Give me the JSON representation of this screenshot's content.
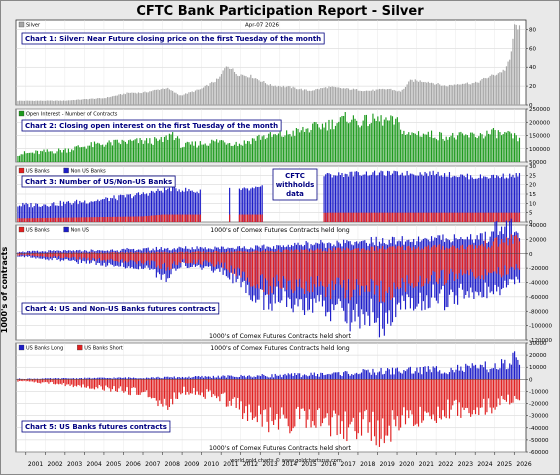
{
  "title": "CFTC Bank Participation Report - Silver",
  "y_side_label": "1000's of contracts",
  "credit": "world gold charts © www.goldchartsrus.com",
  "colors": {
    "navy": "#000080",
    "grey": "#a6a6a6",
    "green": "#1e9a1e",
    "red": "#e02020",
    "blue": "#1c1cc8",
    "frame_bg": "#ffffff",
    "page_bg": "#e9e9e9"
  },
  "x_axis": {
    "years": [
      "2001",
      "2002",
      "2003",
      "2004",
      "2005",
      "2006",
      "2007",
      "2008",
      "2009",
      "2010",
      "2011",
      "2012",
      "2013",
      "2014",
      "2015",
      "2016",
      "2017",
      "2018",
      "2019",
      "2020",
      "2021",
      "2022",
      "2023",
      "2024",
      "2025",
      "2026"
    ],
    "range": [
      2000.5,
      2026.6
    ]
  },
  "chart_data": [
    {
      "id": "chart1",
      "type": "bar",
      "title": "Chart 1: Silver: Near Future closing price on the first Tuesday of the month",
      "legend": [
        "Silver"
      ],
      "date_label": "Apr-07 2026",
      "ylim": [
        0,
        90
      ],
      "ticks": [
        "0",
        "20",
        "40",
        "60",
        "80"
      ],
      "anchors": [
        [
          2001.0,
          4.5
        ],
        [
          2003.0,
          4.6
        ],
        [
          2004.3,
          6.5
        ],
        [
          2005.0,
          7.2
        ],
        [
          2006.3,
          13
        ],
        [
          2007.0,
          13
        ],
        [
          2008.2,
          18
        ],
        [
          2008.9,
          10
        ],
        [
          2010.0,
          17
        ],
        [
          2010.9,
          28
        ],
        [
          2011.3,
          43
        ],
        [
          2011.8,
          33
        ],
        [
          2012.6,
          30
        ],
        [
          2013.5,
          21
        ],
        [
          2014.5,
          19
        ],
        [
          2015.5,
          15
        ],
        [
          2016.5,
          19
        ],
        [
          2017.5,
          17
        ],
        [
          2018.5,
          15
        ],
        [
          2019.6,
          17
        ],
        [
          2020.2,
          14
        ],
        [
          2020.7,
          26
        ],
        [
          2021.5,
          25
        ],
        [
          2022.5,
          20
        ],
        [
          2023.3,
          23
        ],
        [
          2024.0,
          23
        ],
        [
          2024.6,
          29
        ],
        [
          2025.0,
          32
        ],
        [
          2025.5,
          37
        ],
        [
          2025.8,
          48
        ],
        [
          2026.0,
          82
        ],
        [
          2026.2,
          84
        ],
        [
          2026.3,
          78
        ]
      ]
    },
    {
      "id": "chart2",
      "type": "bar",
      "title": "Chart 2: Closing open interest on the first Tuesday of the month",
      "legend": [
        "Open Interest - Number of Contracts"
      ],
      "ylim": [
        50000,
        250000
      ],
      "ticks": [
        "50000",
        "100000",
        "150000",
        "200000",
        "250000"
      ],
      "anchors": [
        [
          2001.0,
          82000
        ],
        [
          2002.0,
          88000
        ],
        [
          2003.0,
          95000
        ],
        [
          2004.0,
          110000
        ],
        [
          2005.0,
          118000
        ],
        [
          2006.0,
          125000
        ],
        [
          2007.0,
          128000
        ],
        [
          2008.0,
          130000
        ],
        [
          2008.5,
          160000
        ],
        [
          2009.0,
          110000
        ],
        [
          2010.0,
          120000
        ],
        [
          2011.0,
          130000
        ],
        [
          2012.0,
          118000
        ],
        [
          2013.0,
          145000
        ],
        [
          2014.0,
          150000
        ],
        [
          2015.0,
          165000
        ],
        [
          2016.0,
          185000
        ],
        [
          2017.0,
          200000
        ],
        [
          2017.5,
          220000
        ],
        [
          2018.0,
          200000
        ],
        [
          2019.0,
          210000
        ],
        [
          2020.0,
          200000
        ],
        [
          2020.5,
          150000
        ],
        [
          2021.0,
          160000
        ],
        [
          2022.0,
          150000
        ],
        [
          2023.0,
          145000
        ],
        [
          2024.0,
          150000
        ],
        [
          2025.0,
          160000
        ],
        [
          2026.0,
          145000
        ],
        [
          2026.3,
          125000
        ]
      ]
    },
    {
      "id": "chart3",
      "type": "bar",
      "title": "Chart 3: Number of US/Non-US Banks",
      "legend": [
        "US Banks",
        "Non US Banks"
      ],
      "annotation": [
        "CFTC",
        "withholds",
        "data"
      ],
      "ylim": [
        0,
        30
      ],
      "ticks": [
        "0",
        "5",
        "10",
        "15",
        "20",
        "25",
        "30"
      ],
      "gaps": [
        [
          2010.0,
          2011.9
        ],
        [
          2013.1,
          2016.2
        ]
      ],
      "singles": [
        2011.4
      ],
      "us_banks": [
        [
          2001.0,
          2
        ],
        [
          2007.0,
          3
        ],
        [
          2008.0,
          4
        ],
        [
          2010.0,
          4
        ],
        [
          2012.0,
          4
        ],
        [
          2013.0,
          4
        ],
        [
          2016.5,
          5
        ],
        [
          2020.0,
          5
        ],
        [
          2026.3,
          5
        ]
      ],
      "total_banks": [
        [
          2001.0,
          9
        ],
        [
          2003.0,
          10
        ],
        [
          2005.0,
          12
        ],
        [
          2007.0,
          15
        ],
        [
          2008.5,
          18
        ],
        [
          2010.0,
          16
        ],
        [
          2011.4,
          18
        ],
        [
          2012.0,
          17
        ],
        [
          2013.0,
          18
        ],
        [
          2016.3,
          25
        ],
        [
          2018.0,
          26
        ],
        [
          2020.0,
          26
        ],
        [
          2022.0,
          26
        ],
        [
          2024.0,
          24
        ],
        [
          2026.3,
          25
        ]
      ]
    },
    {
      "id": "chart4",
      "type": "bar",
      "title": "Chart 4: US and Non-US Banks futures contracts",
      "legend": [
        "US Banks",
        "Non US"
      ],
      "top_note": "1000's of Comex Futures Contracts held long",
      "bottom_note": "1000's of Comex Futures Contracts held short",
      "ylim": [
        -120000,
        40000
      ],
      "ticks": [
        "40000",
        "20000",
        "0",
        "-20000",
        "-40000",
        "-60000",
        "-80000",
        "-100000",
        "-120000"
      ],
      "us_long": [
        [
          2001,
          1000
        ],
        [
          2008,
          2000
        ],
        [
          2012,
          3000
        ],
        [
          2016,
          5000
        ],
        [
          2020,
          8000
        ],
        [
          2024,
          10000
        ],
        [
          2026,
          20000
        ]
      ],
      "nonus_long": [
        [
          2001,
          2000
        ],
        [
          2005,
          3000
        ],
        [
          2008,
          5000
        ],
        [
          2011,
          6000
        ],
        [
          2013,
          5000
        ],
        [
          2016,
          9000
        ],
        [
          2020,
          9000
        ],
        [
          2024,
          12000
        ],
        [
          2025.8,
          18000
        ],
        [
          2026,
          5000
        ]
      ],
      "us_short": [
        [
          2001,
          -2000
        ],
        [
          2005,
          -8000
        ],
        [
          2007,
          -12000
        ],
        [
          2008.3,
          -18000
        ],
        [
          2009,
          -10000
        ],
        [
          2011,
          -15000
        ],
        [
          2012.5,
          -38000
        ],
        [
          2013,
          -42000
        ],
        [
          2016,
          -45000
        ],
        [
          2017.5,
          -52000
        ],
        [
          2018.5,
          -50000
        ],
        [
          2019.5,
          -55000
        ],
        [
          2020.2,
          -40000
        ],
        [
          2021,
          -38000
        ],
        [
          2023,
          -30000
        ],
        [
          2025,
          -28000
        ],
        [
          2026,
          -20000
        ]
      ],
      "nonus_short": [
        [
          2001,
          -2000
        ],
        [
          2005,
          -6000
        ],
        [
          2008.3,
          -12000
        ],
        [
          2009,
          -5000
        ],
        [
          2011,
          -8000
        ],
        [
          2012.5,
          -15000
        ],
        [
          2013,
          -20000
        ],
        [
          2016,
          -25000
        ],
        [
          2017.5,
          -38000
        ],
        [
          2018.5,
          -40000
        ],
        [
          2019.5,
          -38000
        ],
        [
          2020.2,
          -25000
        ],
        [
          2021,
          -28000
        ],
        [
          2023,
          -28000
        ],
        [
          2025,
          -25000
        ],
        [
          2026,
          -15000
        ]
      ]
    },
    {
      "id": "chart5",
      "type": "bar",
      "title": "Chart 5: US Banks futures contracts",
      "legend": [
        "US Banks Long",
        "US Banks Short"
      ],
      "top_note": "1000's of Comex Futures Contracts held long",
      "bottom_note": "1000's of Comex Futures Contracts held short",
      "ylim": [
        -60000,
        30000
      ],
      "ticks": [
        "30000",
        "20000",
        "10000",
        "0",
        "-10000",
        "-20000",
        "-30000",
        "-40000",
        "-50000",
        "-60000"
      ],
      "long": [
        [
          2001,
          500
        ],
        [
          2008,
          1500
        ],
        [
          2012,
          2500
        ],
        [
          2016,
          4000
        ],
        [
          2020,
          7000
        ],
        [
          2024,
          9000
        ],
        [
          2025.8,
          12000
        ],
        [
          2026,
          18000
        ],
        [
          2026.3,
          8000
        ]
      ],
      "short": [
        [
          2001,
          -1500
        ],
        [
          2005,
          -7000
        ],
        [
          2007,
          -11000
        ],
        [
          2008.3,
          -22000
        ],
        [
          2009,
          -9000
        ],
        [
          2011,
          -14000
        ],
        [
          2012.5,
          -30000
        ],
        [
          2013,
          -33000
        ],
        [
          2016,
          -34000
        ],
        [
          2017.5,
          -40000
        ],
        [
          2018.5,
          -38000
        ],
        [
          2019.5,
          -44000
        ],
        [
          2020.2,
          -30000
        ],
        [
          2021,
          -30000
        ],
        [
          2023,
          -24000
        ],
        [
          2025,
          -22000
        ],
        [
          2026,
          -15000
        ]
      ]
    }
  ]
}
